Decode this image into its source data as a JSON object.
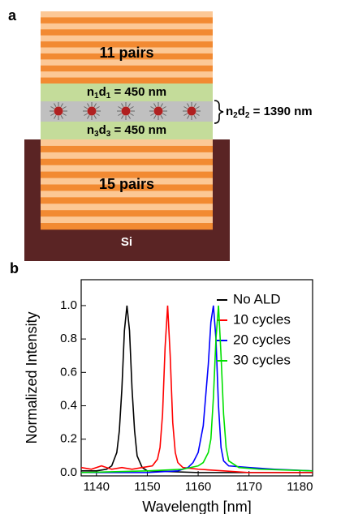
{
  "panel_a": {
    "label": "a",
    "top_stack": "11 pairs",
    "bottom_stack": "15 pairs",
    "substrate": "Si",
    "layer1": [
      "n",
      "1",
      "d",
      "1",
      " = 450 nm"
    ],
    "layer2": [
      "n",
      "2",
      "d",
      "2",
      " = 1390 nm"
    ],
    "layer3": [
      "n",
      "3",
      "d",
      "3",
      " = 450 nm"
    ]
  },
  "chart_data": {
    "type": "line",
    "panel_label": "b",
    "xlabel": "Wavelength [nm]",
    "ylabel": "Normalized Intensity",
    "xlim": [
      1137,
      1182.5
    ],
    "ylim": [
      -0.02,
      1.155
    ],
    "xticks": [
      1140,
      1150,
      1160,
      1170,
      1180
    ],
    "yticks": [
      {
        "value": 0,
        "label": "0.0"
      },
      {
        "value": 0.2,
        "label": "0.2"
      },
      {
        "value": 0.4,
        "label": "0.4"
      },
      {
        "value": 0.6,
        "label": "0.6"
      },
      {
        "value": 0.8,
        "label": "0.8"
      },
      {
        "value": 1,
        "label": "1.0"
      }
    ],
    "legend": "upper right",
    "series": [
      {
        "name": "No ALD",
        "color": "#000000",
        "x": [
          1137,
          1140,
          1142,
          1143,
          1144,
          1144.5,
          1145,
          1145.5,
          1146,
          1146.5,
          1147,
          1147.5,
          1148,
          1149,
          1150,
          1160,
          1182.5
        ],
        "values": [
          0.01,
          0.01,
          0.02,
          0.04,
          0.12,
          0.25,
          0.5,
          0.85,
          1.0,
          0.85,
          0.5,
          0.25,
          0.1,
          0.03,
          0.01,
          0.0,
          0.0
        ]
      },
      {
        "name": "10 cycles",
        "color": "#ff0000",
        "x": [
          1137,
          1139,
          1141,
          1143,
          1145,
          1147,
          1149,
          1151,
          1152,
          1152.5,
          1153,
          1153.5,
          1154,
          1154.5,
          1155,
          1155.5,
          1156,
          1157,
          1160,
          1165,
          1170,
          1182.5
        ],
        "values": [
          0.03,
          0.02,
          0.04,
          0.02,
          0.03,
          0.02,
          0.03,
          0.04,
          0.08,
          0.15,
          0.35,
          0.75,
          1.0,
          0.7,
          0.3,
          0.12,
          0.06,
          0.03,
          0.02,
          0.01,
          0.0,
          0.0
        ]
      },
      {
        "name": "20 cycles",
        "color": "#0000ff",
        "x": [
          1137,
          1150,
          1156,
          1158,
          1159,
          1160,
          1161,
          1162,
          1162.5,
          1163,
          1163.5,
          1164,
          1164.5,
          1165,
          1166,
          1170,
          1175,
          1182.5
        ],
        "values": [
          0.0,
          0.0,
          0.01,
          0.03,
          0.06,
          0.12,
          0.28,
          0.65,
          0.9,
          1.0,
          0.8,
          0.4,
          0.15,
          0.07,
          0.04,
          0.03,
          0.02,
          0.01
        ]
      },
      {
        "name": "30 cycles",
        "color": "#00e000",
        "x": [
          1137,
          1150,
          1157,
          1160,
          1161,
          1162,
          1162.5,
          1163,
          1163.5,
          1164,
          1164.5,
          1165,
          1165.5,
          1166,
          1168,
          1172,
          1182.5
        ],
        "values": [
          0.0,
          0.01,
          0.02,
          0.04,
          0.06,
          0.12,
          0.2,
          0.45,
          0.8,
          1.0,
          0.7,
          0.35,
          0.15,
          0.07,
          0.03,
          0.02,
          0.01
        ]
      }
    ]
  }
}
